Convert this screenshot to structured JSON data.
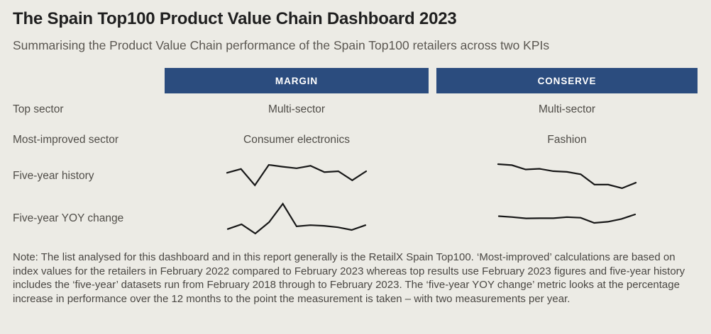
{
  "page": {
    "title": "The Spain Top100 Product Value Chain Dashboard 2023",
    "subtitle": "Summarising the Product Value Chain performance of the Spain Top100 retailers across two KPIs",
    "note": "Note: The list analysed for this dashboard and in this report generally is the RetailX Spain Top100. ‘Most-improved’ calculations are based on index values for the retailers in February 2022 compared to February 2023 whereas top results use February 2023 figures and five-year history includes the ‘five-year’ datasets run from February 2018 through to February 2023. The ‘five-year YOY change’ metric looks at the percentage increase in performance over the 12 months to the point the measurement is taken – with two measurements per year."
  },
  "kpi_table": {
    "row_labels": {
      "top_sector": "Top sector",
      "most_improved_sector": "Most-improved sector",
      "five_year_history": "Five-year history",
      "five_year_yoy_change": "Five-year YOY change"
    },
    "columns": [
      {
        "header": "MARGIN",
        "top_sector": "Multi-sector",
        "most_improved_sector": "Consumer electronics"
      },
      {
        "header": "CONSERVE",
        "top_sector": "Multi-sector",
        "most_improved_sector": "Fashion"
      }
    ]
  },
  "chart_data": [
    {
      "type": "line",
      "name": "margin_five_year_history",
      "kpi": "MARGIN",
      "metric": "Five-year history",
      "x_description": "11 half-yearly measurements, February 2018 through February 2023 (two measurements per year)",
      "x": [
        1,
        2,
        3,
        4,
        5,
        6,
        7,
        8,
        9,
        10,
        11
      ],
      "values_normalized_0_100": [
        65,
        82,
        10,
        100,
        92,
        85,
        96,
        68,
        72,
        32,
        72
      ],
      "grid": false,
      "legend": false
    },
    {
      "type": "line",
      "name": "conserve_five_year_history",
      "kpi": "CONSERVE",
      "metric": "Five-year history",
      "x_description": "11 half-yearly measurements, February 2018 through February 2023 (two measurements per year)",
      "x": [
        1,
        2,
        3,
        4,
        5,
        6,
        7,
        8,
        9,
        10,
        11
      ],
      "values_normalized_0_100": [
        100,
        96,
        78,
        81,
        71,
        68,
        58,
        15,
        15,
        0,
        23
      ],
      "grid": false,
      "legend": false
    },
    {
      "type": "line",
      "name": "margin_five_year_yoy_change",
      "kpi": "MARGIN",
      "metric": "Five-year YOY change",
      "x_description": "11 half-yearly measurements, February 2018 through February 2023 (two measurements per year)",
      "x": [
        1,
        2,
        3,
        4,
        5,
        6,
        7,
        8,
        9,
        10,
        11
      ],
      "values_normalized_0_100": [
        15,
        31,
        0,
        38,
        100,
        24,
        28,
        26,
        21,
        12,
        28
      ],
      "grid": false,
      "legend": false
    },
    {
      "type": "line",
      "name": "conserve_five_year_yoy_change",
      "kpi": "CONSERVE",
      "metric": "Five-year YOY change",
      "x_description": "11 half-yearly measurements, February 2018 through February 2023 (two measurements per year)",
      "x": [
        1,
        2,
        3,
        4,
        5,
        6,
        7,
        8,
        9,
        10,
        11
      ],
      "values_normalized_0_100": [
        79,
        68,
        53,
        55,
        55,
        68,
        61,
        0,
        13,
        47,
        100
      ],
      "grid": false,
      "legend": false
    }
  ],
  "colors": {
    "background": "#ECEBE5",
    "header_bg": "#2B4C7E",
    "header_text": "#FFFFFF",
    "title_text": "#1F1F1F",
    "body_text": "#514E49",
    "sparkline": "#181818"
  }
}
